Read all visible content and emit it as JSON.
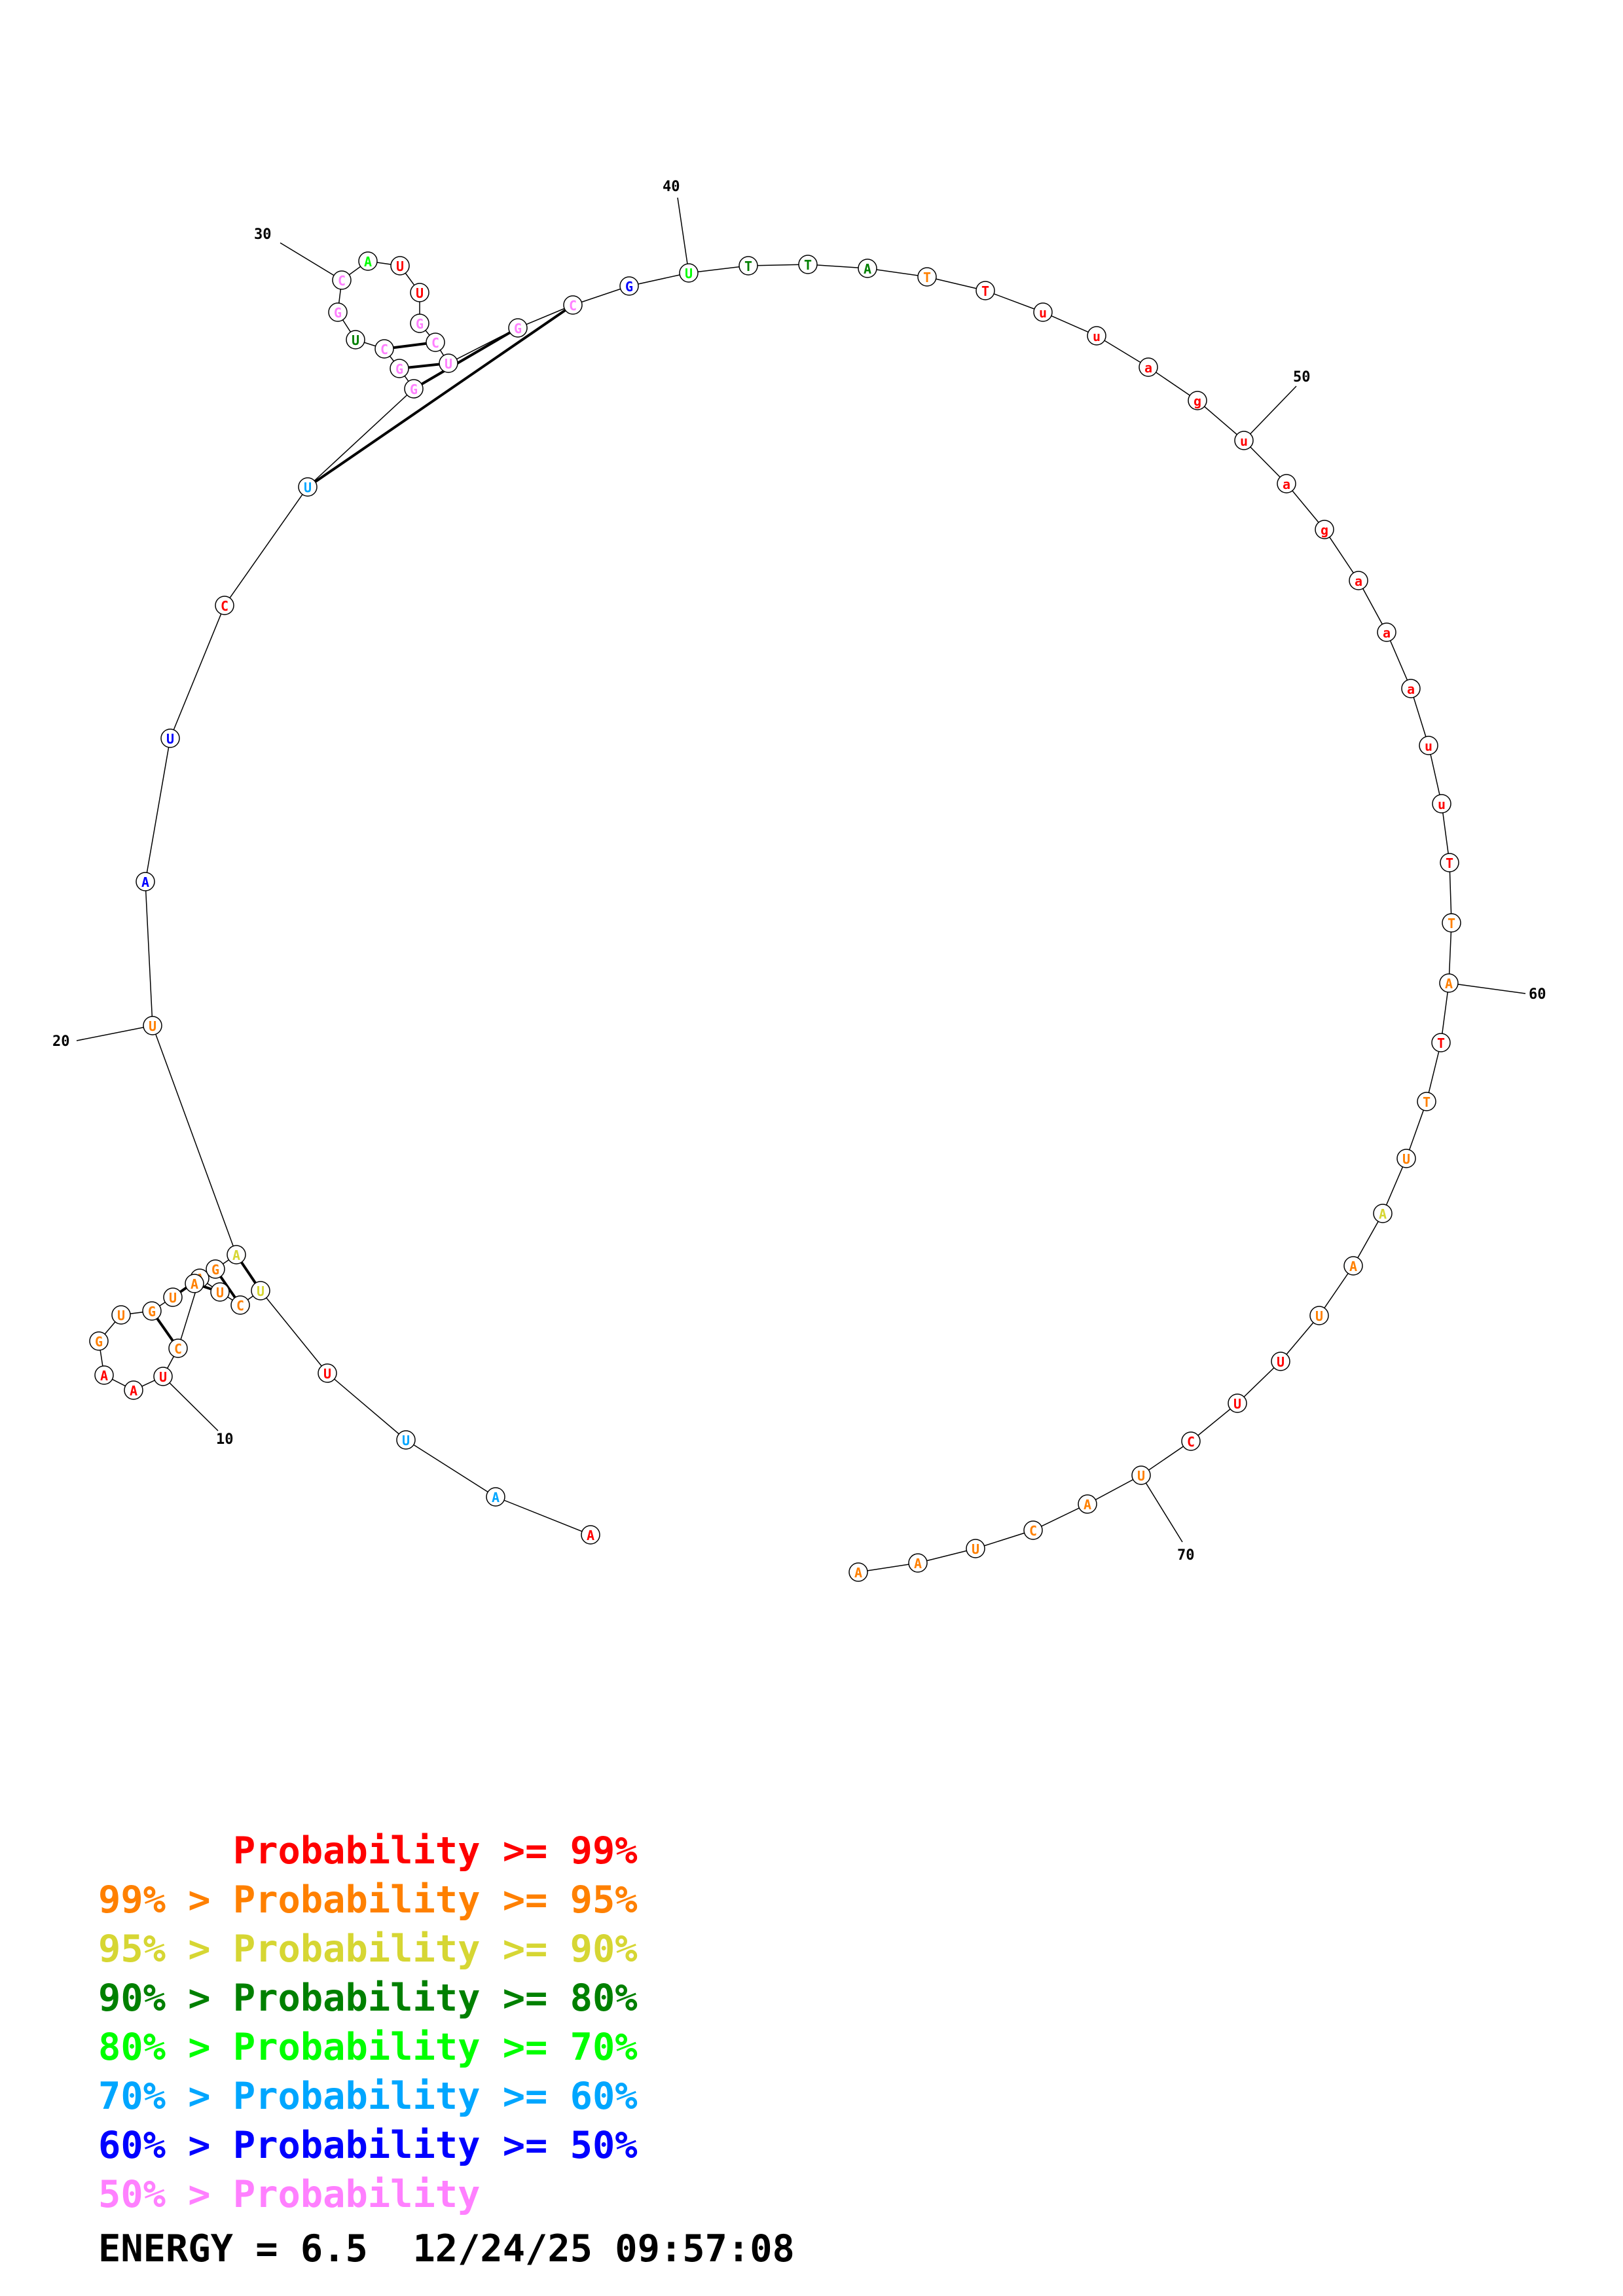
{
  "colors": {
    "p99": "#ff0000",
    "p95": "#ff8000",
    "p90": "#d6d633",
    "p80": "#008000",
    "p70": "#00ff00",
    "p60": "#00a6ff",
    "p50": "#0000ff",
    "plow": "#ff80ff"
  },
  "nucleotides": [
    {
      "n": 1,
      "base": "A",
      "c": "p99"
    },
    {
      "n": 2,
      "base": "A",
      "c": "p60"
    },
    {
      "n": 3,
      "base": "U",
      "c": "p60"
    },
    {
      "n": 4,
      "base": "U",
      "c": "p99"
    },
    {
      "n": 5,
      "base": "U",
      "c": "p90"
    },
    {
      "n": 6,
      "base": "C",
      "c": "p95"
    },
    {
      "n": 7,
      "base": "U",
      "c": "p95"
    },
    {
      "n": 8,
      "base": "A",
      "c": "p95"
    },
    {
      "n": 9,
      "base": "C",
      "c": "p95"
    },
    {
      "n": 10,
      "base": "U",
      "c": "p99"
    },
    {
      "n": 11,
      "base": "A",
      "c": "p99"
    },
    {
      "n": 12,
      "base": "A",
      "c": "p99"
    },
    {
      "n": 13,
      "base": "G",
      "c": "p95"
    },
    {
      "n": 14,
      "base": "U",
      "c": "p95"
    },
    {
      "n": 15,
      "base": "G",
      "c": "p95"
    },
    {
      "n": 16,
      "base": "U",
      "c": "p95"
    },
    {
      "n": 17,
      "base": "A",
      "c": "p95"
    },
    {
      "n": 18,
      "base": "G",
      "c": "p95"
    },
    {
      "n": 19,
      "base": "A",
      "c": "p90"
    },
    {
      "n": 20,
      "base": "U",
      "c": "p95"
    },
    {
      "n": 21,
      "base": "A",
      "c": "p50"
    },
    {
      "n": 22,
      "base": "U",
      "c": "p50"
    },
    {
      "n": 23,
      "base": "C",
      "c": "p99"
    },
    {
      "n": 24,
      "base": "U",
      "c": "p60"
    },
    {
      "n": 25,
      "base": "G",
      "c": "plow"
    },
    {
      "n": 26,
      "base": "G",
      "c": "plow"
    },
    {
      "n": 27,
      "base": "C",
      "c": "plow"
    },
    {
      "n": 28,
      "base": "U",
      "c": "p80"
    },
    {
      "n": 29,
      "base": "G",
      "c": "plow"
    },
    {
      "n": 30,
      "base": "C",
      "c": "plow"
    },
    {
      "n": 31,
      "base": "A",
      "c": "p70"
    },
    {
      "n": 32,
      "base": "U",
      "c": "p99"
    },
    {
      "n": 33,
      "base": "U",
      "c": "p99"
    },
    {
      "n": 34,
      "base": "G",
      "c": "plow"
    },
    {
      "n": 35,
      "base": "C",
      "c": "plow"
    },
    {
      "n": 36,
      "base": "U",
      "c": "plow"
    },
    {
      "n": 37,
      "base": "G",
      "c": "plow"
    },
    {
      "n": 38,
      "base": "C",
      "c": "plow"
    },
    {
      "n": 39,
      "base": "G",
      "c": "p50"
    },
    {
      "n": 40,
      "base": "U",
      "c": "p70"
    },
    {
      "n": 41,
      "base": "T",
      "c": "p80"
    },
    {
      "n": 42,
      "base": "T",
      "c": "p80"
    },
    {
      "n": 43,
      "base": "A",
      "c": "p80"
    },
    {
      "n": 44,
      "base": "T",
      "c": "p95"
    },
    {
      "n": 45,
      "base": "T",
      "c": "p99"
    },
    {
      "n": 46,
      "base": "u",
      "c": "p99"
    },
    {
      "n": 47,
      "base": "u",
      "c": "p99"
    },
    {
      "n": 48,
      "base": "a",
      "c": "p99"
    },
    {
      "n": 49,
      "base": "g",
      "c": "p99"
    },
    {
      "n": 50,
      "base": "u",
      "c": "p99"
    },
    {
      "n": 51,
      "base": "a",
      "c": "p99"
    },
    {
      "n": 52,
      "base": "g",
      "c": "p99"
    },
    {
      "n": 53,
      "base": "a",
      "c": "p99"
    },
    {
      "n": 54,
      "base": "a",
      "c": "p99"
    },
    {
      "n": 55,
      "base": "a",
      "c": "p99"
    },
    {
      "n": 56,
      "base": "u",
      "c": "p99"
    },
    {
      "n": 57,
      "base": "u",
      "c": "p99"
    },
    {
      "n": 58,
      "base": "T",
      "c": "p99"
    },
    {
      "n": 59,
      "base": "T",
      "c": "p95"
    },
    {
      "n": 60,
      "base": "A",
      "c": "p95"
    },
    {
      "n": 61,
      "base": "T",
      "c": "p99"
    },
    {
      "n": 62,
      "base": "T",
      "c": "p95"
    },
    {
      "n": 63,
      "base": "U",
      "c": "p95"
    },
    {
      "n": 64,
      "base": "A",
      "c": "p90"
    },
    {
      "n": 65,
      "base": "A",
      "c": "p95"
    },
    {
      "n": 66,
      "base": "U",
      "c": "p95"
    },
    {
      "n": 67,
      "base": "U",
      "c": "p99"
    },
    {
      "n": 68,
      "base": "U",
      "c": "p99"
    },
    {
      "n": 69,
      "base": "C",
      "c": "p99"
    },
    {
      "n": 70,
      "base": "U",
      "c": "p95"
    },
    {
      "n": 71,
      "base": "A",
      "c": "p95"
    },
    {
      "n": 72,
      "base": "C",
      "c": "p95"
    },
    {
      "n": 73,
      "base": "U",
      "c": "p95"
    },
    {
      "n": 74,
      "base": "A",
      "c": "p95"
    },
    {
      "n": 75,
      "base": "A",
      "c": "p95"
    }
  ],
  "pairs": [
    [
      5,
      19
    ],
    [
      6,
      18
    ],
    [
      7,
      17
    ],
    [
      8,
      16
    ],
    [
      9,
      15
    ],
    [
      24,
      38
    ],
    [
      25,
      37
    ],
    [
      26,
      36
    ],
    [
      27,
      35
    ]
  ],
  "position_labels": [
    {
      "n": 10,
      "text": "10"
    },
    {
      "n": 20,
      "text": "20"
    },
    {
      "n": 30,
      "text": "30"
    },
    {
      "n": 40,
      "text": "40"
    },
    {
      "n": 50,
      "text": "50"
    },
    {
      "n": 60,
      "text": "60"
    },
    {
      "n": 70,
      "text": "70"
    }
  ],
  "legend": [
    {
      "prefix": "    ",
      "text": "Probability >= 99%",
      "c": "p99"
    },
    {
      "prefix": "99% > ",
      "text": "Probability >= 95%",
      "c": "p95"
    },
    {
      "prefix": "95% > ",
      "text": "Probability >= 90%",
      "c": "p90"
    },
    {
      "prefix": "90% > ",
      "text": "Probability >= 80%",
      "c": "p80"
    },
    {
      "prefix": "80% > ",
      "text": "Probability >= 70%",
      "c": "p70"
    },
    {
      "prefix": "70% > ",
      "text": "Probability >= 60%",
      "c": "p60"
    },
    {
      "prefix": "60% > ",
      "text": "Probability >= 50%",
      "c": "p50"
    },
    {
      "prefix": "50% > ",
      "text": "Probability",
      "c": "plow"
    }
  ],
  "footer": {
    "energy": "ENERGY = 6.5",
    "timestamp": "12/24/25 09:57:08"
  }
}
